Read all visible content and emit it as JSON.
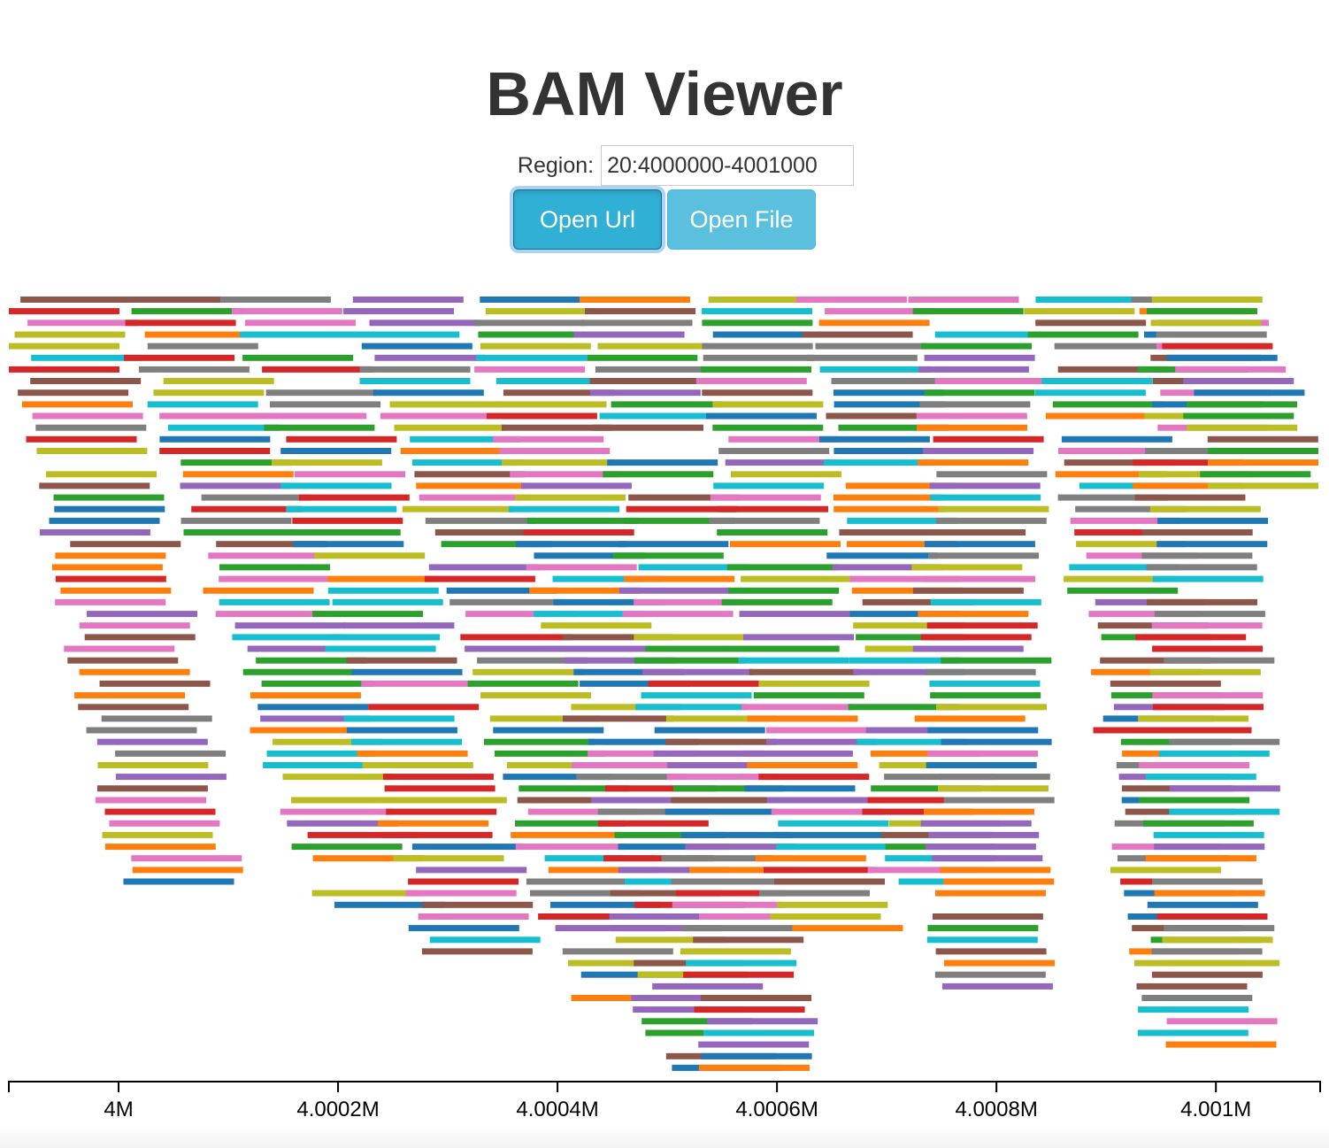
{
  "title": "BAM Viewer",
  "region": {
    "label": "Region:",
    "value": "20:4000000-4001000"
  },
  "buttons": {
    "open_url": "Open Url",
    "open_file": "Open File"
  },
  "axis": {
    "ticks": [
      "4M",
      "4.0002M",
      "4.0004M",
      "4.0006M",
      "4.0008M",
      "4.001M"
    ],
    "tick_positions": [
      4000000,
      4000200,
      4000400,
      4000600,
      4000800,
      4001000
    ],
    "domain": [
      3999900,
      4001095
    ]
  },
  "palette": [
    "#1f77b4",
    "#ff7f0e",
    "#2ca02c",
    "#d62728",
    "#9467bd",
    "#8c564b",
    "#e377c2",
    "#7f7f7f",
    "#bcbd22",
    "#17becf"
  ]
}
